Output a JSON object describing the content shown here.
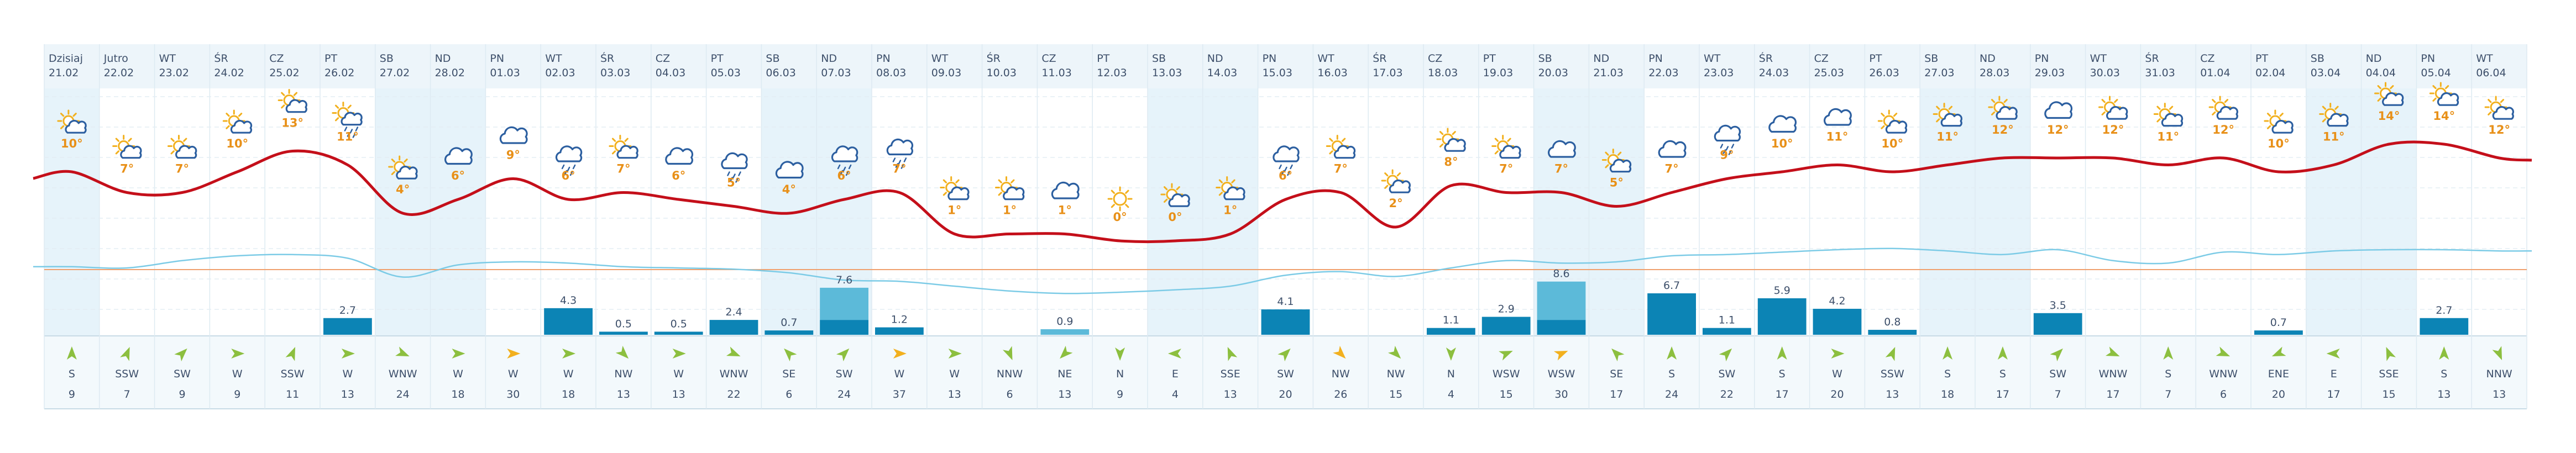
{
  "chart_data": {
    "type": "line",
    "days": [
      {
        "dow": "Dzisiaj",
        "date": "21.02",
        "temp": 10,
        "icon": "sun-cloud-icon",
        "rain": null,
        "dir": "S",
        "wind": 9,
        "weekend": true
      },
      {
        "dow": "Jutro",
        "date": "22.02",
        "temp": 7,
        "icon": "sun-cloud-icon",
        "rain": null,
        "dir": "SSW",
        "wind": 7,
        "weekend": false
      },
      {
        "dow": "WT",
        "date": "23.02",
        "temp": 7,
        "icon": "sun-cloud-icon",
        "rain": null,
        "dir": "SW",
        "wind": 9,
        "weekend": false
      },
      {
        "dow": "ŚR",
        "date": "24.02",
        "temp": 10,
        "icon": "sun-cloud-icon",
        "rain": null,
        "dir": "W",
        "wind": 9,
        "weekend": false
      },
      {
        "dow": "CZ",
        "date": "25.02",
        "temp": 13,
        "icon": "sun-cloud-icon",
        "rain": null,
        "dir": "SSW",
        "wind": 11,
        "weekend": false
      },
      {
        "dow": "PT",
        "date": "26.02",
        "temp": 11,
        "icon": "sun-rain-icon",
        "rain": 2.7,
        "dir": "W",
        "wind": 13,
        "weekend": false
      },
      {
        "dow": "SB",
        "date": "27.02",
        "temp": 4,
        "icon": "sun-cloud-icon",
        "rain": null,
        "dir": "WNW",
        "wind": 24,
        "weekend": true
      },
      {
        "dow": "ND",
        "date": "28.02",
        "temp": 6,
        "icon": "cloud-icon",
        "rain": null,
        "dir": "W",
        "wind": 18,
        "weekend": true
      },
      {
        "dow": "PN",
        "date": "01.03",
        "temp": 9,
        "icon": "cloud-icon",
        "rain": null,
        "dir": "W",
        "wind": 30,
        "weekend": false
      },
      {
        "dow": "WT",
        "date": "02.03",
        "temp": 6,
        "icon": "rain-icon",
        "rain": 4.3,
        "dir": "W",
        "wind": 18,
        "weekend": false
      },
      {
        "dow": "ŚR",
        "date": "03.03",
        "temp": 7,
        "icon": "sun-cloud-icon",
        "rain": 0.5,
        "dir": "NW",
        "wind": 13,
        "weekend": false
      },
      {
        "dow": "CZ",
        "date": "04.03",
        "temp": 6,
        "icon": "cloud-icon",
        "rain": 0.5,
        "dir": "W",
        "wind": 13,
        "weekend": false
      },
      {
        "dow": "PT",
        "date": "05.03",
        "temp": 5,
        "icon": "rain-icon",
        "rain": 2.4,
        "dir": "WNW",
        "wind": 22,
        "weekend": false
      },
      {
        "dow": "SB",
        "date": "06.03",
        "temp": 4,
        "icon": "cloud-icon",
        "rain": 0.7,
        "dir": "SE",
        "wind": 6,
        "weekend": true
      },
      {
        "dow": "ND",
        "date": "07.03",
        "temp": 6,
        "icon": "rain-icon",
        "rain": 7.6,
        "dir": "SW",
        "wind": 24,
        "weekend": true
      },
      {
        "dow": "PN",
        "date": "08.03",
        "temp": 7,
        "icon": "rain-icon",
        "rain": 1.2,
        "dir": "W",
        "wind": 37,
        "weekend": false
      },
      {
        "dow": "WT",
        "date": "09.03",
        "temp": 1,
        "icon": "sun-cloud-icon",
        "rain": null,
        "dir": "W",
        "wind": 13,
        "weekend": false
      },
      {
        "dow": "ŚR",
        "date": "10.03",
        "temp": 1,
        "icon": "sun-cloud-icon",
        "rain": null,
        "dir": "NNW",
        "wind": 6,
        "weekend": false
      },
      {
        "dow": "CZ",
        "date": "11.03",
        "temp": 1,
        "icon": "cloud-icon",
        "rain": 0.9,
        "dir": "NE",
        "wind": 13,
        "weekend": false
      },
      {
        "dow": "PT",
        "date": "12.03",
        "temp": 0,
        "icon": "sun-icon",
        "rain": null,
        "dir": "N",
        "wind": 9,
        "weekend": false
      },
      {
        "dow": "SB",
        "date": "13.03",
        "temp": 0,
        "icon": "sun-cloud-icon",
        "rain": null,
        "dir": "E",
        "wind": 4,
        "weekend": true
      },
      {
        "dow": "ND",
        "date": "14.03",
        "temp": 1,
        "icon": "sun-cloud-icon",
        "rain": null,
        "dir": "SSE",
        "wind": 13,
        "weekend": true
      },
      {
        "dow": "PN",
        "date": "15.03",
        "temp": 6,
        "icon": "rain-icon",
        "rain": 4.1,
        "dir": "SW",
        "wind": 20,
        "weekend": false
      },
      {
        "dow": "WT",
        "date": "16.03",
        "temp": 7,
        "icon": "sun-cloud-icon",
        "rain": null,
        "dir": "NW",
        "wind": 26,
        "weekend": false
      },
      {
        "dow": "ŚR",
        "date": "17.03",
        "temp": 2,
        "icon": "sun-cloud-icon",
        "rain": null,
        "dir": "NW",
        "wind": 15,
        "weekend": false
      },
      {
        "dow": "CZ",
        "date": "18.03",
        "temp": 8,
        "icon": "sun-cloud-icon",
        "rain": 1.1,
        "dir": "N",
        "wind": 4,
        "weekend": false
      },
      {
        "dow": "PT",
        "date": "19.03",
        "temp": 7,
        "icon": "sun-cloud-icon",
        "rain": 2.9,
        "dir": "WSW",
        "wind": 15,
        "weekend": false
      },
      {
        "dow": "SB",
        "date": "20.03",
        "temp": 7,
        "icon": "cloud-icon",
        "rain": 8.6,
        "dir": "WSW",
        "wind": 30,
        "weekend": true
      },
      {
        "dow": "ND",
        "date": "21.03",
        "temp": 5,
        "icon": "sun-cloud-icon",
        "rain": null,
        "dir": "SE",
        "wind": 17,
        "weekend": true
      },
      {
        "dow": "PN",
        "date": "22.03",
        "temp": 7,
        "icon": "cloud-icon",
        "rain": 6.7,
        "dir": "S",
        "wind": 24,
        "weekend": false
      },
      {
        "dow": "WT",
        "date": "23.03",
        "temp": 9,
        "icon": "rain-icon",
        "rain": 1.1,
        "dir": "SW",
        "wind": 22,
        "weekend": false
      },
      {
        "dow": "ŚR",
        "date": "24.03",
        "temp": 10,
        "icon": "cloud-icon",
        "rain": 5.9,
        "dir": "S",
        "wind": 17,
        "weekend": false
      },
      {
        "dow": "CZ",
        "date": "25.03",
        "temp": 11,
        "icon": "cloud-icon",
        "rain": 4.2,
        "dir": "W",
        "wind": 20,
        "weekend": false
      },
      {
        "dow": "PT",
        "date": "26.03",
        "temp": 10,
        "icon": "sun-cloud-icon",
        "rain": 0.8,
        "dir": "SSW",
        "wind": 13,
        "weekend": false
      },
      {
        "dow": "SB",
        "date": "27.03",
        "temp": 11,
        "icon": "sun-cloud-icon",
        "rain": null,
        "dir": "S",
        "wind": 18,
        "weekend": true
      },
      {
        "dow": "ND",
        "date": "28.03",
        "temp": 12,
        "icon": "sun-cloud-icon",
        "rain": null,
        "dir": "S",
        "wind": 17,
        "weekend": true
      },
      {
        "dow": "PN",
        "date": "29.03",
        "temp": 12,
        "icon": "cloud-icon",
        "rain": 3.5,
        "dir": "SW",
        "wind": 7,
        "weekend": false
      },
      {
        "dow": "WT",
        "date": "30.03",
        "temp": 12,
        "icon": "sun-cloud-icon",
        "rain": null,
        "dir": "WNW",
        "wind": 17,
        "weekend": false
      },
      {
        "dow": "ŚR",
        "date": "31.03",
        "temp": 11,
        "icon": "sun-cloud-icon",
        "rain": null,
        "dir": "S",
        "wind": 7,
        "weekend": false
      },
      {
        "dow": "CZ",
        "date": "01.04",
        "temp": 12,
        "icon": "sun-cloud-icon",
        "rain": null,
        "dir": "WNW",
        "wind": 6,
        "weekend": false
      },
      {
        "dow": "PT",
        "date": "02.04",
        "temp": 10,
        "icon": "sun-cloud-icon",
        "rain": 0.7,
        "dir": "ENE",
        "wind": 20,
        "weekend": false
      },
      {
        "dow": "SB",
        "date": "03.04",
        "temp": 11,
        "icon": "sun-cloud-icon",
        "rain": null,
        "dir": "E",
        "wind": 17,
        "weekend": true
      },
      {
        "dow": "ND",
        "date": "04.04",
        "temp": 14,
        "icon": "sun-cloud-icon",
        "rain": null,
        "dir": "SSE",
        "wind": 15,
        "weekend": true
      },
      {
        "dow": "PN",
        "date": "05.04",
        "temp": 14,
        "icon": "sun-cloud-icon",
        "rain": 2.7,
        "dir": "S",
        "wind": 13,
        "weekend": false
      },
      {
        "dow": "WT",
        "date": "06.04",
        "temp": 12,
        "icon": "sun-cloud-icon",
        "rain": null,
        "dir": "NNW",
        "wind": 13,
        "weekend": false
      }
    ],
    "pressure_trend": [
      0.52,
      0.5,
      0.62,
      0.7,
      0.72,
      0.66,
      0.35,
      0.55,
      0.6,
      0.58,
      0.52,
      0.5,
      0.48,
      0.42,
      0.3,
      0.28,
      0.2,
      0.12,
      0.08,
      0.1,
      0.14,
      0.2,
      0.38,
      0.44,
      0.36,
      0.5,
      0.62,
      0.58,
      0.6,
      0.7,
      0.72,
      0.76,
      0.8,
      0.82,
      0.78,
      0.72,
      0.8,
      0.62,
      0.58,
      0.76,
      0.72,
      0.78,
      0.8,
      0.8,
      0.78
    ],
    "colors": {
      "temp_line": "#c40f1a",
      "temp_label": "#e89018",
      "sun": "#f2b01e",
      "cloud": "#2c5fa0",
      "pressure_line": "#7ccbe6",
      "zero_line": "#f0a06e",
      "rain_bar": "#0c84b5",
      "rain_bar_light": "#5cbad9",
      "weekend_bg": "#e6f3fa",
      "panel_bg": "#f3f9fc",
      "arrow": "#8cbf3f",
      "arrow_strong": "#f2b01e",
      "text": "#3d4f6a"
    }
  }
}
